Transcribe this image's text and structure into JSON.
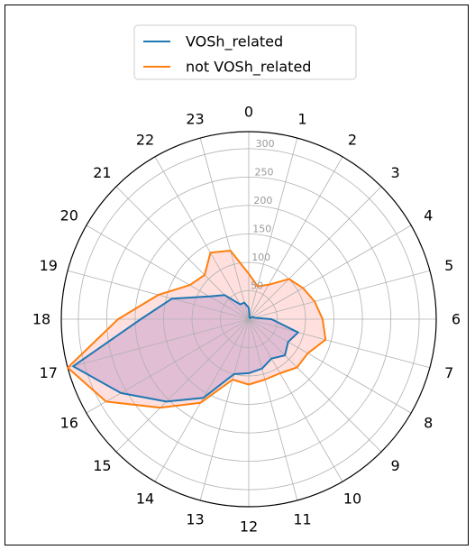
{
  "chart_data": {
    "type": "radar",
    "theta_labels": [
      "0",
      "1",
      "2",
      "3",
      "4",
      "5",
      "6",
      "7",
      "8",
      "9",
      "10",
      "11",
      "12",
      "13",
      "14",
      "15",
      "16",
      "17",
      "18",
      "19",
      "20",
      "21",
      "22",
      "23"
    ],
    "r_ticks": [
      50,
      100,
      150,
      200,
      250,
      300
    ],
    "r_tick_labels": [
      "50",
      "100",
      "150",
      "200",
      "250",
      "300"
    ],
    "rlim": [
      0,
      330
    ],
    "grid": true,
    "legend_position": "top",
    "series": [
      {
        "name": "VOSh_related",
        "color": "#1f77b4",
        "fill": "#a070c0",
        "values": [
          20,
          5,
          3,
          3,
          8,
          10,
          40,
          90,
          80,
          90,
          80,
          90,
          95,
          100,
          160,
          205,
          260,
          320,
          190,
          140,
          80,
          60,
          30,
          30
        ]
      },
      {
        "name": "not VOSh_related",
        "color": "#ff7f0e",
        "fill": "#ff9896",
        "values": [
          80,
          60,
          70,
          100,
          110,
          120,
          130,
          140,
          120,
          120,
          110,
          110,
          115,
          110,
          170,
          220,
          290,
          330,
          230,
          165,
          120,
          110,
          135,
          125
        ]
      }
    ]
  }
}
